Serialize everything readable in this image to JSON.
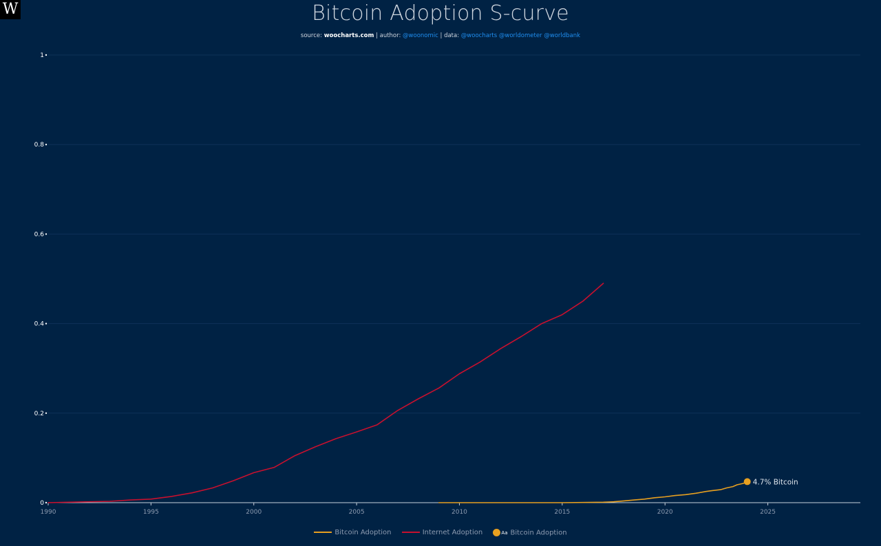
{
  "logo": {
    "letter": "W"
  },
  "header": {
    "title": "Bitcoin Adoption S-curve",
    "source_label": "source:",
    "source_site": "woocharts.com",
    "author_label": "| author:",
    "author_handle": "@woonomic",
    "data_label": "| data:",
    "data_handles": "@woocharts @worldometer @worldbank"
  },
  "colors": {
    "background": "#002244",
    "bitcoin": "#e8a020",
    "internet": "#c8102e",
    "grid": "#0e3158",
    "axis_text": "#8d9bb0",
    "ytick_text": "#ffffff"
  },
  "chart_data": {
    "type": "line",
    "title": "Bitcoin Adoption S-curve",
    "xlabel": "",
    "ylabel": "",
    "xlim": [
      1990,
      2029.5
    ],
    "ylim": [
      0,
      1
    ],
    "grid": true,
    "legend": "bottom-center",
    "x_ticks": [
      1990,
      1995,
      2000,
      2005,
      2010,
      2015,
      2020,
      2025
    ],
    "x_tick_labels": [
      "1990",
      "1995",
      "2000",
      "2005",
      "2010",
      "2015",
      "2020",
      "2025"
    ],
    "y_ticks": [
      0,
      0.2,
      0.4,
      0.6,
      0.8,
      1
    ],
    "y_tick_labels": [
      "0",
      "0.2",
      "0.4",
      "0.6",
      "0.8",
      "1"
    ],
    "series": [
      {
        "name": "Bitcoin Adoption",
        "color": "#e8a020",
        "x": [
          2009,
          2012,
          2015,
          2016,
          2017,
          2017.5,
          2018,
          2018.5,
          2019,
          2019.5,
          2020,
          2020.5,
          2021,
          2021.5,
          2022,
          2022.3,
          2022.7,
          2023,
          2023.3,
          2023.5,
          2023.8,
          2024
        ],
        "y": [
          0,
          0,
          0,
          0.0005,
          0.001,
          0.002,
          0.004,
          0.006,
          0.008,
          0.011,
          0.013,
          0.016,
          0.018,
          0.021,
          0.025,
          0.027,
          0.029,
          0.033,
          0.036,
          0.04,
          0.043,
          0.047
        ]
      },
      {
        "name": "Internet Adoption",
        "color": "#c8102e",
        "x": [
          1990,
          1991,
          1992,
          1993,
          1994,
          1995,
          1996,
          1997,
          1998,
          1999,
          2000,
          2001,
          2002,
          2003,
          2004,
          2005,
          2006,
          2007,
          2008,
          2009,
          2010,
          2011,
          2012,
          2013,
          2014,
          2015,
          2016,
          2017
        ],
        "y": [
          0,
          0.001,
          0.002,
          0.003,
          0.006,
          0.008,
          0.014,
          0.022,
          0.033,
          0.049,
          0.067,
          0.079,
          0.105,
          0.125,
          0.143,
          0.158,
          0.174,
          0.206,
          0.232,
          0.256,
          0.288,
          0.314,
          0.344,
          0.371,
          0.4,
          0.42,
          0.45,
          0.49
        ]
      }
    ],
    "annotations": [
      {
        "text": "4.7% Bitcoin",
        "x": 2024,
        "y": 0.047,
        "series": "Bitcoin Adoption"
      }
    ]
  },
  "legend": {
    "items": [
      {
        "label": "Bitcoin Adoption",
        "kind": "line",
        "color": "#e8a020"
      },
      {
        "label": "Internet Adoption",
        "kind": "line",
        "color": "#c8102e"
      },
      {
        "label": "Bitcoin Adoption",
        "kind": "dot",
        "color": "#e8a020",
        "badge": "Aa"
      }
    ]
  }
}
